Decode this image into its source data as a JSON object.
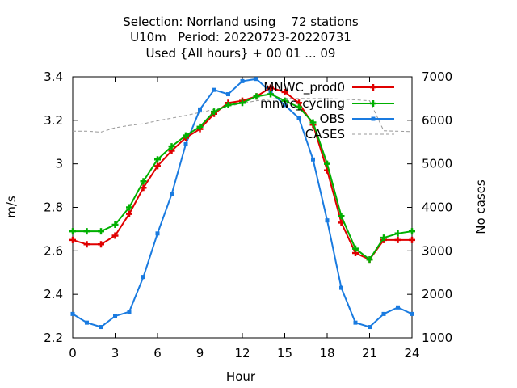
{
  "chart_data": {
    "type": "line",
    "title_lines": [
      "Selection: Norrland using    72 stations",
      "U10m   Period: 20220723-20220731",
      "Used {All hours} + 00 01 ... 09"
    ],
    "xlabel": "Hour",
    "ylabel": "m/s",
    "y2label": "No cases",
    "xlim": [
      0,
      24
    ],
    "ylim": [
      2.2,
      3.4
    ],
    "y2lim": [
      1000,
      7000
    ],
    "x_ticks": [
      0,
      3,
      6,
      9,
      12,
      15,
      18,
      21,
      24
    ],
    "x_tick_labels": [
      "0",
      "3",
      "6",
      "9",
      "12",
      "15",
      "18",
      "21",
      "24"
    ],
    "y_ticks": [
      2.2,
      2.4,
      2.6,
      2.8,
      3.0,
      3.2,
      3.4
    ],
    "y_tick_labels": [
      "2.2",
      "2.4",
      "2.6",
      "2.8",
      "3",
      "3.2",
      "3.4"
    ],
    "y2_ticks": [
      1000,
      2000,
      3000,
      4000,
      5000,
      6000,
      7000
    ],
    "y2_tick_labels": [
      "1000",
      "2000",
      "3000",
      "4000",
      "5000",
      "6000",
      "7000"
    ],
    "legend_position": "top-right",
    "x": [
      0,
      1,
      2,
      3,
      4,
      5,
      6,
      7,
      8,
      9,
      10,
      11,
      12,
      13,
      14,
      15,
      16,
      17,
      18,
      19,
      20,
      21,
      22,
      23,
      24
    ],
    "series": [
      {
        "name": "MNWC_prod0",
        "color": "#e00000",
        "marker": "plus",
        "values": [
          2.65,
          2.63,
          2.63,
          2.67,
          2.77,
          2.89,
          2.99,
          3.06,
          3.12,
          3.16,
          3.23,
          3.28,
          3.29,
          3.31,
          3.35,
          3.33,
          3.28,
          3.18,
          2.97,
          2.73,
          2.59,
          2.56,
          2.65,
          2.65,
          2.65
        ]
      },
      {
        "name": "mnwc_cycling",
        "color": "#00b000",
        "marker": "plus",
        "values": [
          2.69,
          2.69,
          2.69,
          2.72,
          2.8,
          2.92,
          3.02,
          3.08,
          3.13,
          3.17,
          3.24,
          3.27,
          3.28,
          3.31,
          3.32,
          3.29,
          3.26,
          3.19,
          3.0,
          2.76,
          2.61,
          2.56,
          2.66,
          2.68,
          2.69
        ]
      },
      {
        "name": "OBS",
        "color": "#1a7be0",
        "marker": "square",
        "values": [
          2.31,
          2.27,
          2.25,
          2.3,
          2.32,
          2.48,
          2.68,
          2.86,
          3.09,
          3.25,
          3.34,
          3.32,
          3.38,
          3.39,
          3.33,
          3.27,
          3.21,
          3.02,
          2.74,
          2.43,
          2.27,
          2.25,
          2.31,
          2.34,
          2.31
        ]
      },
      {
        "name": "CASES",
        "color": "#999999",
        "dashed": true,
        "axis": "y2",
        "values": [
          5750,
          5750,
          5730,
          5830,
          5880,
          5920,
          5990,
          6050,
          6110,
          6180,
          6250,
          6320,
          6390,
          6450,
          6490,
          6510,
          6500,
          6500,
          6500,
          6490,
          6470,
          6450,
          5760,
          5750,
          5740
        ]
      }
    ]
  }
}
